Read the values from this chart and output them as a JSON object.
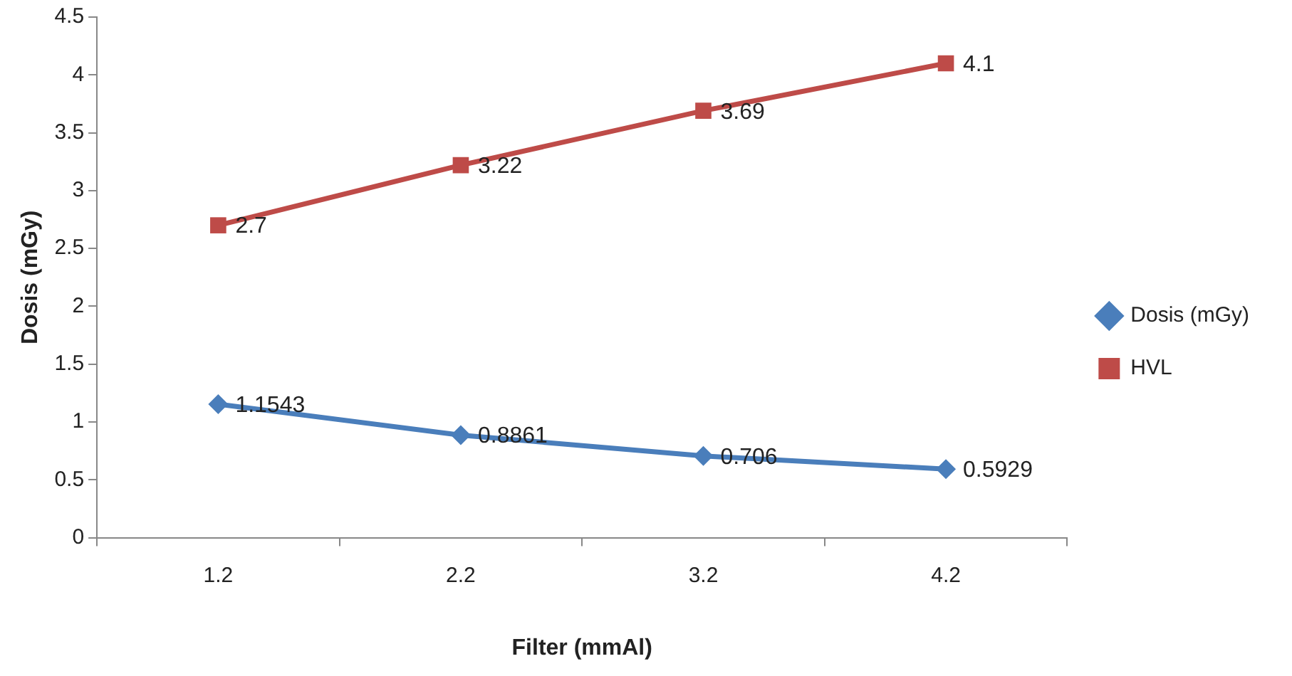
{
  "chart_data": {
    "type": "line",
    "xlabel": "Filter (mmAl)",
    "ylabel": "Dosis (mGy)",
    "categories": [
      "1.2",
      "2.2",
      "3.2",
      "4.2"
    ],
    "series": [
      {
        "name": "Dosis (mGy)",
        "color": "#4a7ebb",
        "marker": "diamond",
        "values": [
          1.1543,
          0.8861,
          0.706,
          0.5929
        ]
      },
      {
        "name": "HVL",
        "color": "#be4b48",
        "marker": "square",
        "values": [
          2.7,
          3.22,
          3.69,
          4.1
        ]
      }
    ],
    "ylim": [
      0,
      4.5
    ],
    "yticks": [
      0,
      0.5,
      1,
      1.5,
      2,
      2.5,
      3,
      3.5,
      4,
      4.5
    ],
    "grid": false,
    "legend": "right",
    "data_labels": true
  }
}
